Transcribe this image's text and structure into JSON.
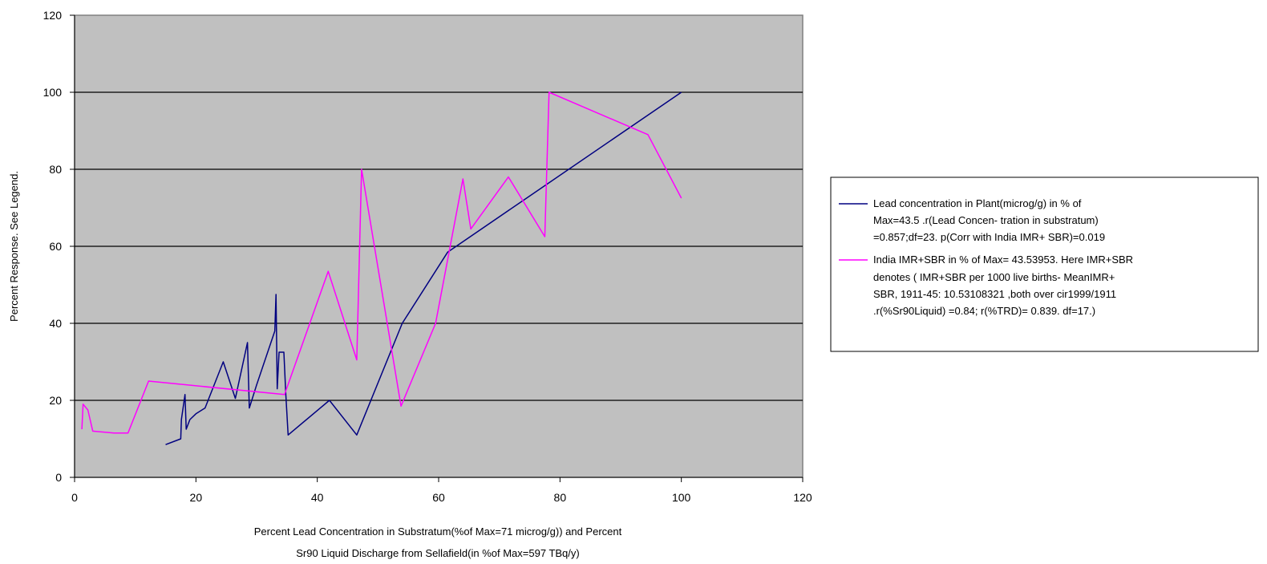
{
  "chart_data": {
    "type": "line",
    "title": "",
    "xlabel_lines": [
      "Percent Lead Concentration in Substratum(%of Max=71 microg/g)) and Percent",
      "Sr90 Liquid Discharge from Sellafield(in %of Max=597 TBq/y)"
    ],
    "ylabel": "Percent Response. See Legend.",
    "xlim": [
      0,
      120
    ],
    "ylim": [
      0,
      120
    ],
    "xticks": [
      0,
      20,
      40,
      60,
      80,
      100,
      120
    ],
    "yticks": [
      0,
      20,
      40,
      60,
      80,
      100,
      120
    ],
    "grid": "horizontal",
    "plot_background": "#c0c0c0",
    "legend_placement": "right",
    "series": [
      {
        "key": "lead",
        "color": "#000080",
        "legend_lines": [
          "Lead concentration in Plant(microg/g) in % of",
          "Max=43.5 .r(Lead Concen- tration in substratum)",
          "=0.857;df=23. p(Corr with India IMR+ SBR)=0.019"
        ],
        "points": [
          [
            15,
            8.5
          ],
          [
            17.5,
            10
          ],
          [
            17.6,
            15
          ],
          [
            18.2,
            21.5
          ],
          [
            18.4,
            12.5
          ],
          [
            19,
            15
          ],
          [
            20,
            16.5
          ],
          [
            21.5,
            18
          ],
          [
            24.5,
            30
          ],
          [
            26.5,
            20.5
          ],
          [
            28.5,
            35
          ],
          [
            28.8,
            18
          ],
          [
            30,
            24
          ],
          [
            33,
            38
          ],
          [
            33.2,
            47.5
          ],
          [
            33.4,
            23
          ],
          [
            33.7,
            32.5
          ],
          [
            34.5,
            32.5
          ],
          [
            34.8,
            22
          ],
          [
            35.2,
            11
          ],
          [
            42,
            20
          ],
          [
            46.5,
            11
          ],
          [
            54,
            40
          ],
          [
            61.5,
            58.5
          ],
          [
            100,
            100
          ]
        ]
      },
      {
        "key": "india",
        "color": "#ff00ff",
        "legend_lines": [
          "India IMR+SBR in % of Max= 43.53953. Here IMR+SBR",
          "denotes ( IMR+SBR per 1000 live births- MeanIMR+",
          "SBR, 1911-45: 10.53108321 ,both over cir1999/1911",
          ".r(%Sr90Liquid) =0.84; r(%TRD)= 0.839. df=17.)"
        ],
        "points": [
          [
            1.2,
            12.5
          ],
          [
            1.4,
            19
          ],
          [
            2.2,
            17.5
          ],
          [
            3,
            12
          ],
          [
            6.5,
            11.5
          ],
          [
            8.8,
            11.5
          ],
          [
            12.2,
            25
          ],
          [
            34.6,
            21.5
          ],
          [
            41.8,
            53.5
          ],
          [
            46.5,
            30.5
          ],
          [
            47.3,
            80
          ],
          [
            53.8,
            18.5
          ],
          [
            59.5,
            40
          ],
          [
            64,
            77.5
          ],
          [
            65.3,
            64.5
          ],
          [
            71.5,
            78
          ],
          [
            77.5,
            62.5
          ],
          [
            78.2,
            100
          ],
          [
            94.5,
            89
          ],
          [
            100,
            72.5
          ]
        ]
      }
    ]
  }
}
